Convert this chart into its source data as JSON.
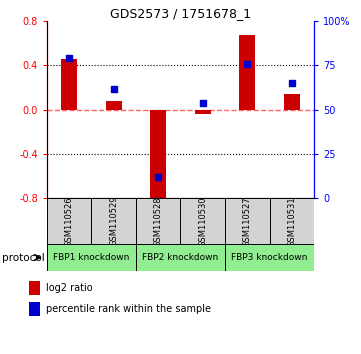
{
  "title": "GDS2573 / 1751678_1",
  "samples": [
    "GSM110526",
    "GSM110529",
    "GSM110528",
    "GSM110530",
    "GSM110527",
    "GSM110531"
  ],
  "log2_ratio": [
    0.46,
    0.08,
    -0.82,
    -0.04,
    0.68,
    0.14
  ],
  "percentile_rank": [
    79,
    62,
    12,
    54,
    76,
    65
  ],
  "ylim_left": [
    -0.8,
    0.8
  ],
  "ylim_right": [
    0,
    100
  ],
  "yticks_left": [
    -0.8,
    -0.4,
    0.0,
    0.4,
    0.8
  ],
  "yticks_right": [
    0,
    25,
    50,
    75,
    100
  ],
  "ytick_labels_right": [
    "0",
    "25",
    "50",
    "75",
    "100%"
  ],
  "hlines": [
    0.4,
    -0.4
  ],
  "zero_line": 0.0,
  "groups": [
    {
      "label": "FBP1 knockdown",
      "samples": [
        0,
        1
      ],
      "color": "#90EE90"
    },
    {
      "label": "FBP2 knockdown",
      "samples": [
        2,
        3
      ],
      "color": "#90EE90"
    },
    {
      "label": "FBP3 knockdown",
      "samples": [
        4,
        5
      ],
      "color": "#90EE90"
    }
  ],
  "bar_color": "#CC0000",
  "square_color": "#0000CC",
  "zero_line_color": "#FF6666",
  "background_color": "#ffffff",
  "bar_width": 0.35,
  "square_size": 25,
  "legend_items": [
    "log2 ratio",
    "percentile rank within the sample"
  ],
  "protocol_label": "protocol"
}
